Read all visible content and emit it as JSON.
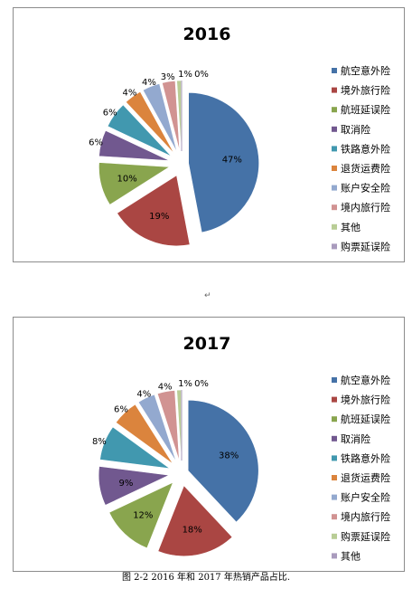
{
  "chart_data": [
    {
      "type": "pie",
      "title": "2016",
      "categories": [
        "航空意外险",
        "境外旅行险",
        "航班延误险",
        "取消险",
        "铁路意外险",
        "退货运费险",
        "账户安全险",
        "境内旅行险",
        "其他",
        "购票延误险"
      ],
      "values": [
        47,
        19,
        10,
        6,
        6,
        4,
        4,
        3,
        1,
        0
      ],
      "labels": [
        "47%",
        "19%",
        "10%",
        "6%",
        "6%",
        "4%",
        "4%",
        "3%",
        "1%",
        "0%"
      ],
      "colors": [
        "#4572a7",
        "#aa4643",
        "#89a54e",
        "#71588f",
        "#4198af",
        "#db843d",
        "#93a9cf",
        "#d19392",
        "#b9cd96",
        "#a99bbd"
      ],
      "legend_position": "right"
    },
    {
      "type": "pie",
      "title": "2017",
      "categories": [
        "航空意外险",
        "境外旅行险",
        "航班延误险",
        "取消险",
        "铁路意外险",
        "退货运费险",
        "账户安全险",
        "境内旅行险",
        "购票延误险",
        "其他"
      ],
      "values": [
        38,
        18,
        12,
        9,
        8,
        6,
        4,
        4,
        1,
        0
      ],
      "labels": [
        "38%",
        "18%",
        "12%",
        "9%",
        "8%",
        "6%",
        "4%",
        "4%",
        "1%",
        "0%"
      ],
      "colors": [
        "#4572a7",
        "#aa4643",
        "#89a54e",
        "#71588f",
        "#4198af",
        "#db843d",
        "#93a9cf",
        "#d19392",
        "#b9cd96",
        "#a99bbd"
      ],
      "legend_position": "right"
    }
  ],
  "paragraph_mark": "↵",
  "caption": "图 2-2 2016 年和 2017 年热销产品占比."
}
